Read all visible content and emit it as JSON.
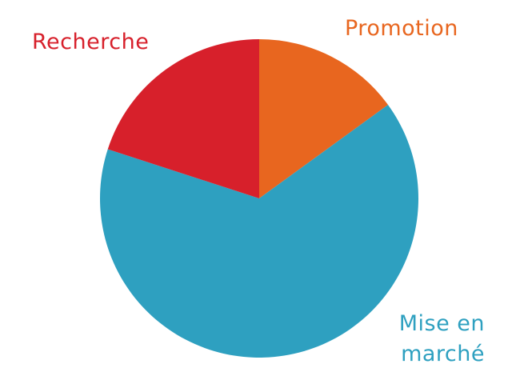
{
  "chart_data": {
    "type": "pie",
    "title": "",
    "start_angle_deg": 0,
    "direction": "clockwise",
    "slices": [
      {
        "label": "Promotion",
        "value": 15,
        "color": "#E8661F"
      },
      {
        "label": "Mise en\nmarché",
        "value": 65,
        "color": "#2EA0C0"
      },
      {
        "label": "Recherche",
        "value": 20,
        "color": "#D7202B"
      }
    ],
    "legend": "none",
    "labels_outside": true
  }
}
